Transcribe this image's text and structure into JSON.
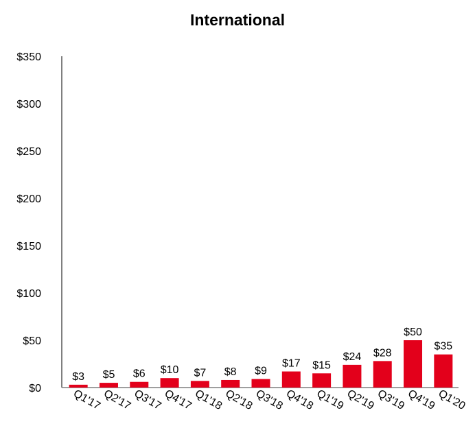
{
  "chart_data": {
    "type": "bar",
    "title": "International",
    "xlabel": "",
    "ylabel": "",
    "categories": [
      "Q1'17",
      "Q2'17",
      "Q3'17",
      "Q4'17",
      "Q1'18",
      "Q2'18",
      "Q3'18",
      "Q4'18",
      "Q1'19",
      "Q2'19",
      "Q3'19",
      "Q4'19",
      "Q1'20"
    ],
    "values": [
      3,
      5,
      6,
      10,
      7,
      8,
      9,
      17,
      15,
      24,
      28,
      50,
      35
    ],
    "data_labels": [
      "$3",
      "$5",
      "$6",
      "$10",
      "$7",
      "$8",
      "$9",
      "$17",
      "$15",
      "$24",
      "$28",
      "$50",
      "$35"
    ],
    "ylim": [
      0,
      350
    ],
    "yticks": [
      0,
      50,
      100,
      150,
      200,
      250,
      300,
      350
    ],
    "ytick_labels": [
      "$0",
      "$50",
      "$100",
      "$150",
      "$200",
      "$250",
      "$300",
      "$350"
    ],
    "grid": false,
    "legend": "none",
    "colors": {
      "bar": "#e3001b",
      "axis": "#7f7f7f"
    }
  }
}
